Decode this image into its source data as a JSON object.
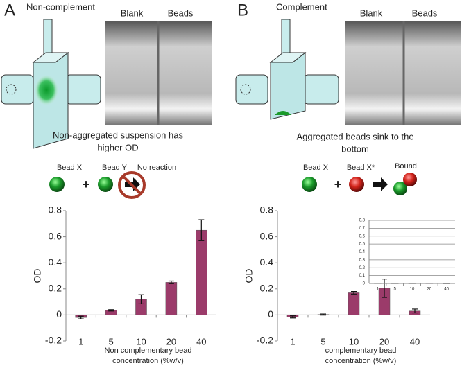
{
  "panels": [
    {
      "letter": "A",
      "title": "Non-complement",
      "photo_labels": [
        "Blank",
        "Beads"
      ],
      "caption": [
        "Non-aggregated suspension has",
        "higher OD"
      ],
      "reaction_labels": [
        "Bead X",
        "Bead Y",
        "No reaction"
      ]
    },
    {
      "letter": "B",
      "title": "Complement",
      "photo_labels": [
        "Blank",
        "Beads"
      ],
      "caption": [
        "Aggregated beads sink to the",
        "bottom"
      ],
      "reaction_labels": [
        "Bead X",
        "Bead X*",
        "Bound"
      ]
    }
  ],
  "chart_data": [
    {
      "type": "bar",
      "ylabel": "OD",
      "xlabel": [
        "Non complementary bead",
        "concentration (%w/v)"
      ],
      "categories": [
        "1",
        "5",
        "10",
        "20",
        "40"
      ],
      "values": [
        -0.02,
        0.035,
        0.12,
        0.25,
        0.65
      ],
      "errors": [
        0.01,
        0.005,
        0.035,
        0.01,
        0.08
      ],
      "color": "#9b3b6a",
      "ylim": [
        -0.2,
        0.8
      ],
      "yticks": [
        -0.2,
        0,
        0.2,
        0.4,
        0.6,
        0.8
      ],
      "grid": false
    },
    {
      "type": "bar",
      "ylabel": "OD",
      "xlabel": [
        "complementary bead",
        "concentration (%w/v)"
      ],
      "categories": [
        "1",
        "5",
        "10",
        "20",
        "40"
      ],
      "values": [
        -0.015,
        0.003,
        0.17,
        0.205,
        0.03
      ],
      "errors": [
        0.008,
        0.004,
        0.01,
        0.07,
        0.015
      ],
      "color": "#9b3b6a",
      "ylim": [
        -0.2,
        0.8
      ],
      "yticks": [
        -0.2,
        0,
        0.2,
        0.4,
        0.6,
        0.8
      ],
      "grid": false
    },
    {
      "type": "bar",
      "categories": [
        "1",
        "5",
        "10",
        "20",
        "40"
      ],
      "values": [
        0.005,
        0.002,
        0.002,
        0.004,
        0.001
      ],
      "color": "#9b3b6a",
      "ylim": [
        0,
        0.8
      ],
      "yticks": [
        0,
        0.1,
        0.2,
        0.3,
        0.4,
        0.5,
        0.6,
        0.7,
        0.8
      ],
      "grid": true
    }
  ]
}
